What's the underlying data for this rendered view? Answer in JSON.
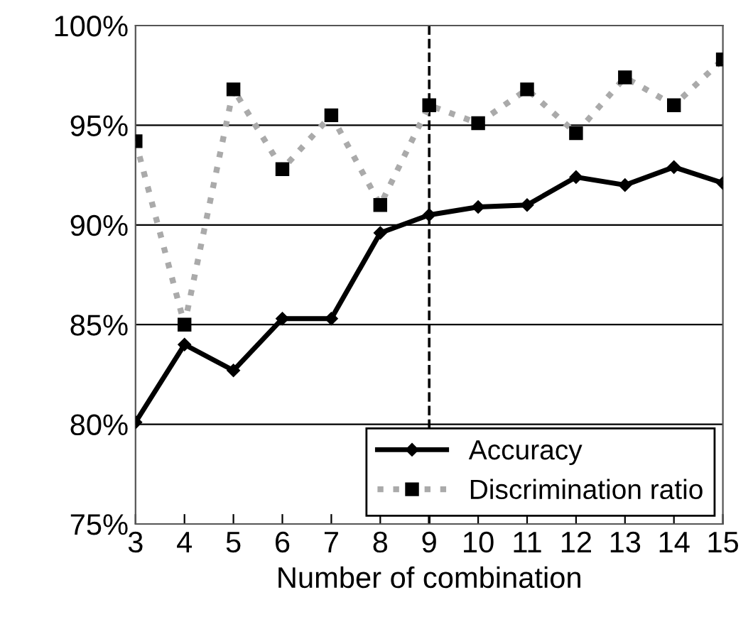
{
  "chart_data": {
    "type": "line",
    "xlabel": "Number of combination",
    "x": [
      3,
      4,
      5,
      6,
      7,
      8,
      9,
      10,
      11,
      12,
      13,
      14,
      15
    ],
    "xlim": [
      3,
      15
    ],
    "xticks": [
      3,
      4,
      5,
      6,
      7,
      8,
      9,
      10,
      11,
      12,
      13,
      14,
      15
    ],
    "ylim": [
      75,
      100
    ],
    "yticks": [
      {
        "value": 75,
        "label": "75%"
      },
      {
        "value": 80,
        "label": "80%"
      },
      {
        "value": 85,
        "label": "85%"
      },
      {
        "value": 90,
        "label": "90%"
      },
      {
        "value": 95,
        "label": "95%"
      },
      {
        "value": 100,
        "label": "100%"
      }
    ],
    "series": [
      {
        "name": "Accuracy",
        "color": "#000000",
        "marker": "diamond",
        "line_style": "solid",
        "values": [
          80.1,
          84.0,
          82.7,
          85.3,
          85.3,
          89.6,
          90.5,
          90.9,
          91.0,
          92.4,
          92.0,
          92.9,
          92.1
        ]
      },
      {
        "name": "Discrimination ratio",
        "color": "#aaaaaa",
        "marker": "square",
        "line_style": "dotted",
        "values": [
          94.2,
          85.0,
          96.8,
          92.8,
          95.5,
          91.0,
          96.0,
          95.1,
          96.8,
          94.6,
          97.4,
          96.0,
          98.3
        ]
      }
    ],
    "ref_lines": [
      {
        "axis": "x",
        "value": 9,
        "color": "#000000",
        "line_style": "dashed"
      }
    ],
    "grid": "y",
    "legend": "bottom right"
  }
}
